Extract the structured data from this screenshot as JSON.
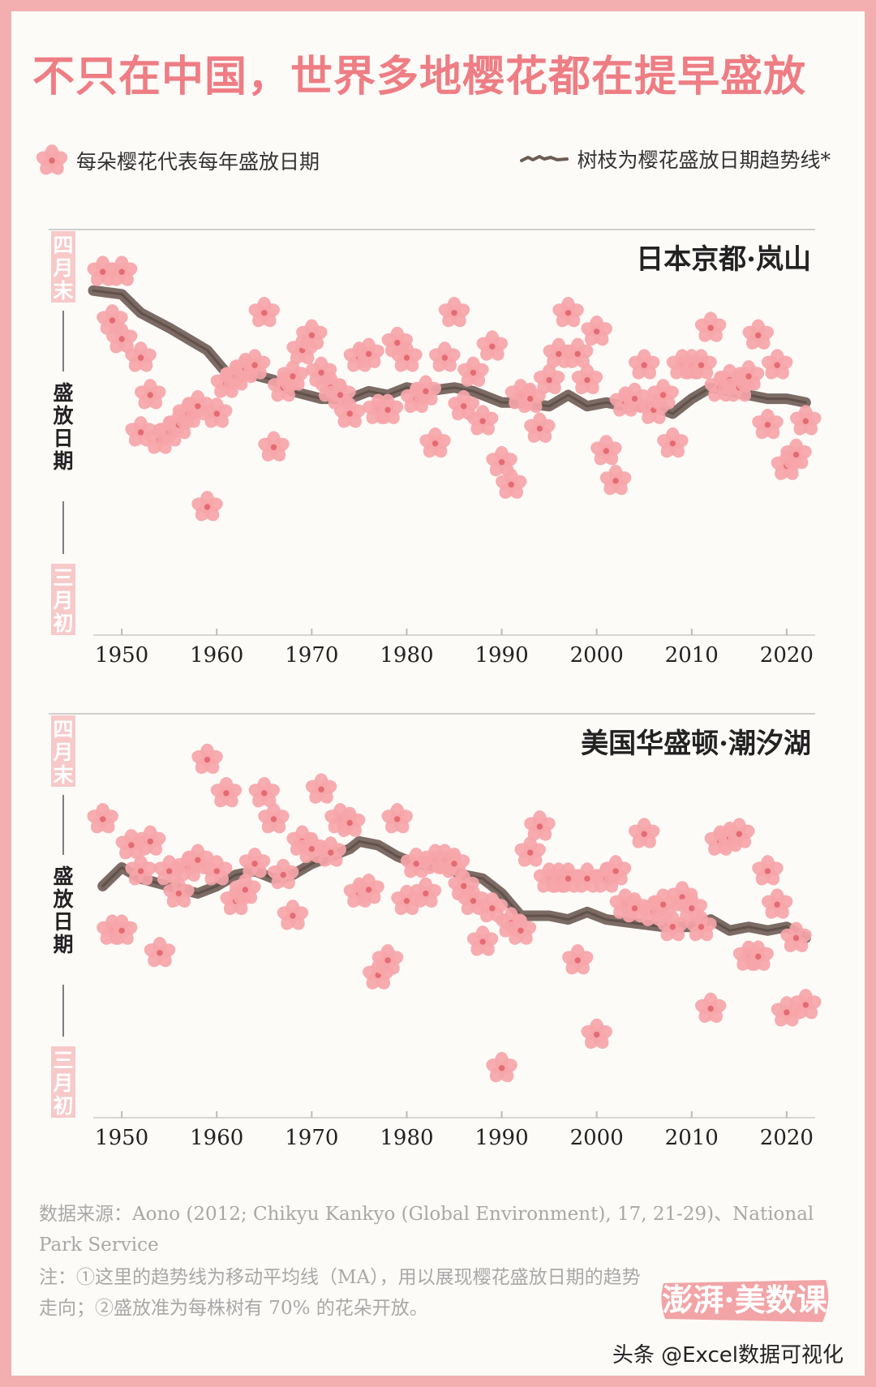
{
  "title": "不只在中国，世界多地樱花都在提早盛放",
  "legend": {
    "flower_label": "每朵樱花代表每年盛放日期",
    "trend_label": "树枝为樱花盛放日期趋势线*"
  },
  "axis": {
    "top_label": "四月末",
    "mid_label": "盛放日期",
    "bottom_label": "三月初"
  },
  "colors": {
    "petal": "#f6a5a9",
    "petal_center": "#e46b73",
    "branch": "#6e5b54",
    "title": "#ee7d84",
    "label_pink": "#f7c9c9"
  },
  "chart_data": [
    {
      "type": "scatter",
      "title": "日本京都·岚山",
      "xlabel": "",
      "ylabel": "盛放日期",
      "xlim": [
        1947,
        2023
      ],
      "xticks": [
        1950,
        1960,
        1970,
        1980,
        1990,
        2000,
        2010,
        2020
      ],
      "ytick_labels": [
        "四月末",
        "三月初"
      ],
      "ylim": [
        0,
        100
      ],
      "grid": false,
      "points": [
        [
          1948,
          93
        ],
        [
          1950,
          93
        ],
        [
          1949,
          80
        ],
        [
          1950,
          75
        ],
        [
          1952,
          70
        ],
        [
          1953,
          60
        ],
        [
          1952,
          50
        ],
        [
          1954,
          48
        ],
        [
          1955,
          50
        ],
        [
          1956,
          52
        ],
        [
          1957,
          55
        ],
        [
          1958,
          57
        ],
        [
          1959,
          30
        ],
        [
          1960,
          55
        ],
        [
          1961,
          63
        ],
        [
          1962,
          65
        ],
        [
          1963,
          67
        ],
        [
          1964,
          68
        ],
        [
          1965,
          82
        ],
        [
          1966,
          46
        ],
        [
          1967,
          62
        ],
        [
          1968,
          65
        ],
        [
          1969,
          72
        ],
        [
          1970,
          76
        ],
        [
          1971,
          66
        ],
        [
          1972,
          62
        ],
        [
          1973,
          60
        ],
        [
          1974,
          55
        ],
        [
          1975,
          70
        ],
        [
          1976,
          71
        ],
        [
          1977,
          56
        ],
        [
          1978,
          56
        ],
        [
          1979,
          74
        ],
        [
          1980,
          70
        ],
        [
          1981,
          59
        ],
        [
          1982,
          61
        ],
        [
          1983,
          47
        ],
        [
          1984,
          70
        ],
        [
          1985,
          82
        ],
        [
          1986,
          57
        ],
        [
          1987,
          66
        ],
        [
          1988,
          53
        ],
        [
          1989,
          73
        ],
        [
          1990,
          42
        ],
        [
          1991,
          36
        ],
        [
          1992,
          60
        ],
        [
          1993,
          59
        ],
        [
          1994,
          51
        ],
        [
          1995,
          64
        ],
        [
          1996,
          71
        ],
        [
          1997,
          82
        ],
        [
          1998,
          71
        ],
        [
          1999,
          64
        ],
        [
          2000,
          77
        ],
        [
          2001,
          45
        ],
        [
          2002,
          37
        ],
        [
          2003,
          58
        ],
        [
          2004,
          59
        ],
        [
          2005,
          68
        ],
        [
          2006,
          56
        ],
        [
          2007,
          60
        ],
        [
          2008,
          47
        ],
        [
          2009,
          68
        ],
        [
          2010,
          68
        ],
        [
          2011,
          68
        ],
        [
          2012,
          78
        ],
        [
          2013,
          62
        ],
        [
          2014,
          64
        ],
        [
          2015,
          62
        ],
        [
          2016,
          65
        ],
        [
          2017,
          76
        ],
        [
          2018,
          52
        ],
        [
          2019,
          68
        ],
        [
          2020,
          41
        ],
        [
          2021,
          44
        ],
        [
          2022,
          53
        ]
      ],
      "trend": [
        [
          1947,
          88
        ],
        [
          1950,
          87
        ],
        [
          1952,
          82
        ],
        [
          1955,
          78
        ],
        [
          1957,
          75
        ],
        [
          1959,
          72
        ],
        [
          1961,
          66
        ],
        [
          1963,
          66
        ],
        [
          1966,
          64
        ],
        [
          1968,
          61
        ],
        [
          1971,
          59
        ],
        [
          1974,
          59
        ],
        [
          1976,
          61
        ],
        [
          1978,
          60
        ],
        [
          1980,
          62
        ],
        [
          1982,
          61
        ],
        [
          1985,
          62
        ],
        [
          1987,
          61
        ],
        [
          1990,
          58
        ],
        [
          1992,
          58
        ],
        [
          1995,
          57
        ],
        [
          1997,
          60
        ],
        [
          1999,
          57
        ],
        [
          2001,
          58
        ],
        [
          2003,
          57
        ],
        [
          2006,
          57
        ],
        [
          2008,
          55
        ],
        [
          2010,
          59
        ],
        [
          2012,
          62
        ],
        [
          2014,
          61
        ],
        [
          2016,
          60
        ],
        [
          2018,
          59
        ],
        [
          2020,
          59
        ],
        [
          2022,
          58
        ]
      ]
    },
    {
      "type": "scatter",
      "title": "美国华盛顿·潮汐湖",
      "xlabel": "",
      "ylabel": "盛放日期",
      "xlim": [
        1947,
        2023
      ],
      "xticks": [
        1950,
        1960,
        1970,
        1980,
        1990,
        2000,
        2010,
        2020
      ],
      "ytick_labels": [
        "四月末",
        "三月初"
      ],
      "ylim": [
        0,
        100
      ],
      "grid": false,
      "points": [
        [
          1948,
          76
        ],
        [
          1949,
          46
        ],
        [
          1950,
          46
        ],
        [
          1951,
          69
        ],
        [
          1952,
          62
        ],
        [
          1953,
          70
        ],
        [
          1954,
          40
        ],
        [
          1955,
          62
        ],
        [
          1956,
          56
        ],
        [
          1957,
          63
        ],
        [
          1958,
          65
        ],
        [
          1959,
          92
        ],
        [
          1960,
          62
        ],
        [
          1961,
          83
        ],
        [
          1962,
          54
        ],
        [
          1963,
          57
        ],
        [
          1964,
          64
        ],
        [
          1965,
          83
        ],
        [
          1966,
          76
        ],
        [
          1967,
          61
        ],
        [
          1968,
          50
        ],
        [
          1969,
          70
        ],
        [
          1970,
          68
        ],
        [
          1971,
          84
        ],
        [
          1972,
          67
        ],
        [
          1973,
          76
        ],
        [
          1974,
          75
        ],
        [
          1975,
          56
        ],
        [
          1976,
          57
        ],
        [
          1977,
          34
        ],
        [
          1978,
          38
        ],
        [
          1979,
          76
        ],
        [
          1980,
          54
        ],
        [
          1981,
          64
        ],
        [
          1982,
          56
        ],
        [
          1983,
          65
        ],
        [
          1984,
          65
        ],
        [
          1985,
          64
        ],
        [
          1986,
          58
        ],
        [
          1987,
          54
        ],
        [
          1988,
          43
        ],
        [
          1989,
          52
        ],
        [
          1990,
          9
        ],
        [
          1991,
          48
        ],
        [
          1992,
          46
        ],
        [
          1993,
          67
        ],
        [
          1994,
          74
        ],
        [
          1995,
          60
        ],
        [
          1996,
          60
        ],
        [
          1997,
          60
        ],
        [
          1998,
          38
        ],
        [
          1999,
          60
        ],
        [
          2000,
          18
        ],
        [
          2001,
          60
        ],
        [
          2002,
          62
        ],
        [
          2003,
          53
        ],
        [
          2004,
          52
        ],
        [
          2005,
          72
        ],
        [
          2006,
          51
        ],
        [
          2007,
          53
        ],
        [
          2008,
          47
        ],
        [
          2009,
          55
        ],
        [
          2010,
          52
        ],
        [
          2011,
          47
        ],
        [
          2012,
          25
        ],
        [
          2013,
          70
        ],
        [
          2014,
          71
        ],
        [
          2015,
          72
        ],
        [
          2016,
          39
        ],
        [
          2017,
          39
        ],
        [
          2018,
          62
        ],
        [
          2019,
          53
        ],
        [
          2020,
          24
        ],
        [
          2021,
          44
        ],
        [
          2022,
          26
        ]
      ],
      "trend": [
        [
          1948,
          58
        ],
        [
          1950,
          63
        ],
        [
          1952,
          60
        ],
        [
          1955,
          58
        ],
        [
          1958,
          56
        ],
        [
          1960,
          58
        ],
        [
          1962,
          61
        ],
        [
          1964,
          62
        ],
        [
          1966,
          60
        ],
        [
          1968,
          61
        ],
        [
          1970,
          64
        ],
        [
          1972,
          66
        ],
        [
          1974,
          68
        ],
        [
          1975,
          70
        ],
        [
          1977,
          69
        ],
        [
          1979,
          66
        ],
        [
          1981,
          64
        ],
        [
          1984,
          63
        ],
        [
          1986,
          61
        ],
        [
          1988,
          60
        ],
        [
          1990,
          56
        ],
        [
          1992,
          50
        ],
        [
          1995,
          50
        ],
        [
          1997,
          49
        ],
        [
          1999,
          51
        ],
        [
          2001,
          49
        ],
        [
          2004,
          48
        ],
        [
          2007,
          47
        ],
        [
          2010,
          47
        ],
        [
          2012,
          49
        ],
        [
          2014,
          46
        ],
        [
          2016,
          47
        ],
        [
          2018,
          46
        ],
        [
          2020,
          47
        ],
        [
          2022,
          44
        ]
      ]
    }
  ],
  "source": "数据来源：Aono (2012; Chikyu Kankyo (Global Environment), 17, 21-29)、National Park Service",
  "note": "注：①这里的趋势线为移动平均线（MA），用以展现樱花盛放日期的趋势走向；②盛放准为每株树有 70% 的花朵开放。",
  "logo_text": "澎湃·美数课",
  "watermark": "头条 @Excel数据可视化"
}
